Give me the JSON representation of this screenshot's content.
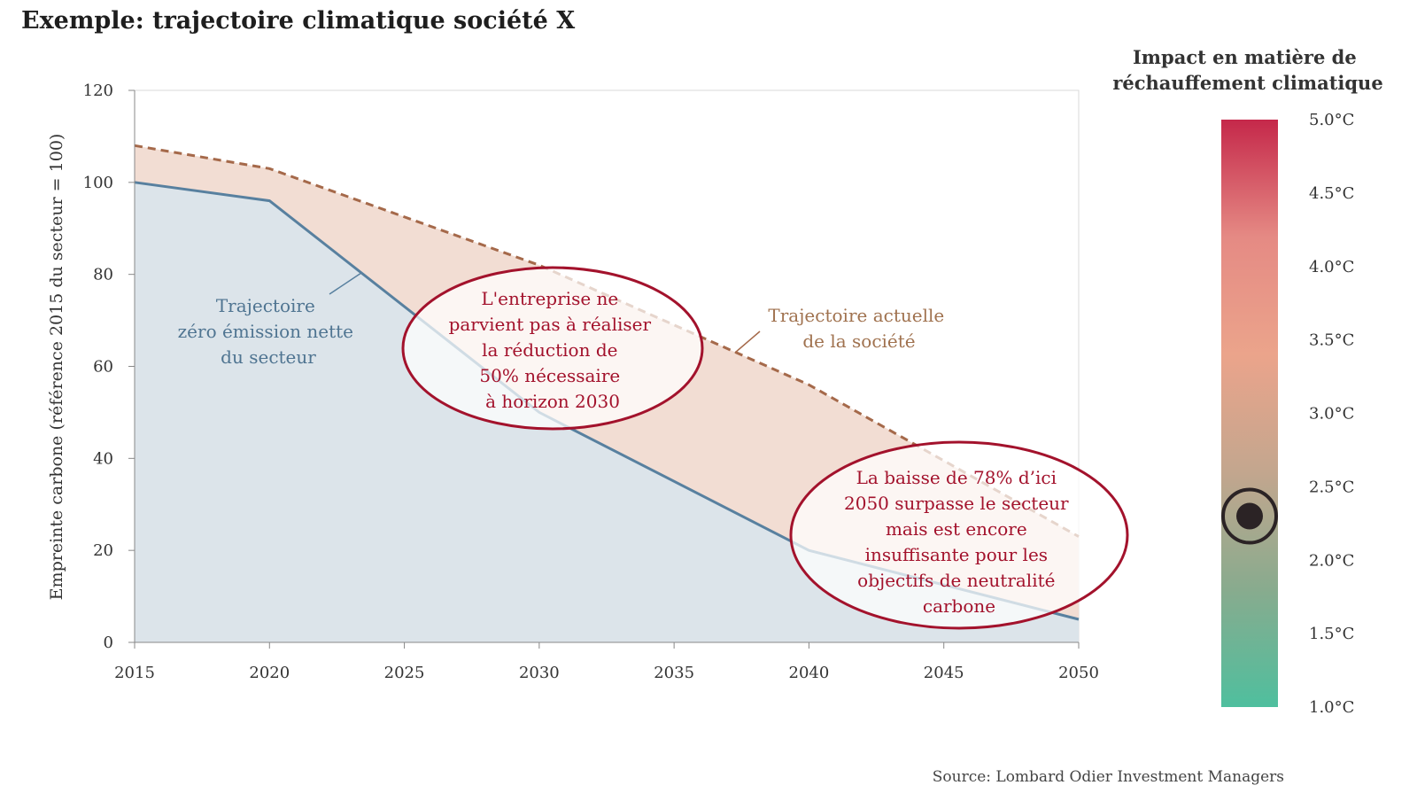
{
  "title": "Exemple: trajectoire climatique société X",
  "source": "Source: Lombard Odier Investment Managers",
  "colors": {
    "sector_line": "#58809f",
    "sector_fill": "#dce4ea",
    "company_line": "#a5694a",
    "gap_fill": "#f2ddd3",
    "callout_stroke": "#a3122c",
    "marker": "#2b2325"
  },
  "chart_data": {
    "type": "area",
    "ylabel": "Empreinte carbone (référence 2015 du secteur = 100)",
    "xlabel": "",
    "x_ticks": [
      "2015",
      "2020",
      "2025",
      "2030",
      "2035",
      "2040",
      "2045",
      "2050"
    ],
    "y_ticks": [
      "0",
      "20",
      "40",
      "60",
      "80",
      "100",
      "120"
    ],
    "xlim": [
      2015,
      2050
    ],
    "ylim": [
      0,
      120
    ],
    "grid": false,
    "series": [
      {
        "name": "Trajectoire zéro émission nette du secteur",
        "style": "solid line, filled area below",
        "x": [
          2015,
          2020,
          2030,
          2040,
          2050
        ],
        "y": [
          100,
          96,
          50,
          20,
          5
        ]
      },
      {
        "name": "Trajectoire actuelle de la société",
        "style": "dashed line, gap above sector filled",
        "x": [
          2015,
          2020,
          2030,
          2040,
          2050
        ],
        "y": [
          108,
          103,
          82,
          56,
          23
        ]
      }
    ],
    "annotations": [
      {
        "id": "sector",
        "lines": [
          "Trajectoire",
          "zéro émission nette",
          "du secteur"
        ]
      },
      {
        "id": "company",
        "lines": [
          "Trajectoire actuelle",
          "de la société"
        ]
      },
      {
        "id": "callout-2030",
        "lines": [
          "L'entreprise ne",
          "parvient pas à réaliser",
          "la réduction de",
          "50% nécessaire",
          "à horizon 2030"
        ]
      },
      {
        "id": "callout-2050",
        "lines": [
          "La baisse de 78% d’ici",
          "2050 surpasse le secteur",
          "mais est encore",
          "insuffisante pour les",
          "objectifs de neutralité",
          "carbone"
        ]
      }
    ]
  },
  "warming_scale": {
    "title_lines": [
      "Impact en matière de",
      "réchauffement climatique"
    ],
    "ticks": [
      "5.0°C",
      "4.5°C",
      "4.0°C",
      "3.5°C",
      "3.0°C",
      "2.5°C",
      "2.0°C",
      "1.5°C",
      "1.0°C"
    ],
    "range": [
      1.0,
      5.0
    ],
    "marker_value": 2.3,
    "gradient": [
      "#c5284a",
      "#e58a84",
      "#eba48b",
      "#c3a68e",
      "#88ab8e",
      "#4fbf9e"
    ]
  }
}
